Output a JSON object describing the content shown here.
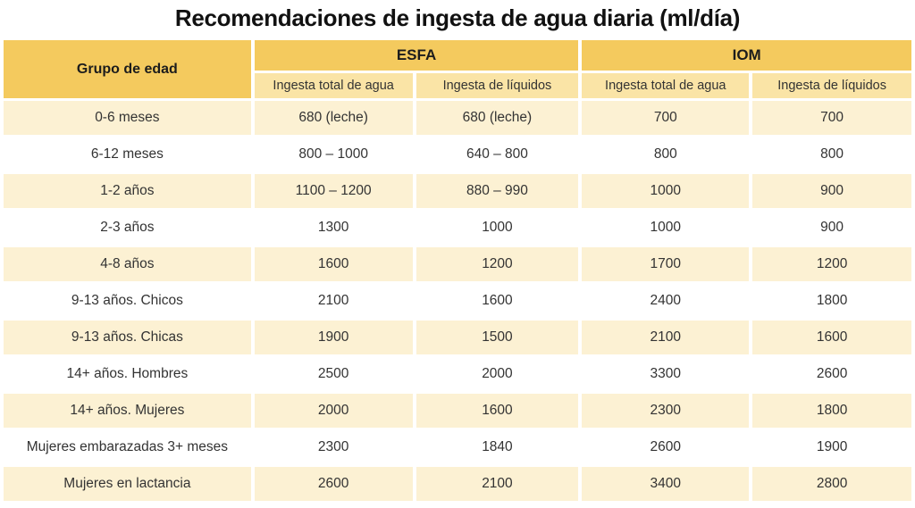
{
  "title": "Recomendaciones de ingesta de agua diaria (ml/día)",
  "colors": {
    "header_gold": "#F4CA5E",
    "subheader_gold": "#FAE4A6",
    "row_cream": "#FCF1D3",
    "row_white": "#FFFFFF",
    "text_dark": "#2B2B2B"
  },
  "chart_data": {
    "type": "table",
    "title": "Recomendaciones de ingesta de agua diaria (ml/día)",
    "group_header": "Grupo de edad",
    "org_groups": [
      {
        "label": "ESFA",
        "subcols": [
          "Ingesta total de agua",
          "Ingesta de líquidos"
        ]
      },
      {
        "label": "IOM",
        "subcols": [
          "Ingesta total de agua",
          "Ingesta de líquidos"
        ]
      }
    ],
    "rows": [
      {
        "group": "0-6 meses",
        "values": [
          "680 (leche)",
          "680 (leche)",
          "700",
          "700"
        ]
      },
      {
        "group": "6-12 meses",
        "values": [
          "800 – 1000",
          "640 – 800",
          "800",
          "800"
        ]
      },
      {
        "group": "1-2 años",
        "values": [
          "1100 – 1200",
          "880 – 990",
          "1000",
          "900"
        ]
      },
      {
        "group": "2-3 años",
        "values": [
          "1300",
          "1000",
          "1000",
          "900"
        ]
      },
      {
        "group": "4-8 años",
        "values": [
          "1600",
          "1200",
          "1700",
          "1200"
        ]
      },
      {
        "group": "9-13 años. Chicos",
        "values": [
          "2100",
          "1600",
          "2400",
          "1800"
        ]
      },
      {
        "group": "9-13 años. Chicas",
        "values": [
          "1900",
          "1500",
          "2100",
          "1600"
        ]
      },
      {
        "group": "14+ años. Hombres",
        "values": [
          "2500",
          "2000",
          "3300",
          "2600"
        ]
      },
      {
        "group": "14+ años. Mujeres",
        "values": [
          "2000",
          "1600",
          "2300",
          "1800"
        ]
      },
      {
        "group": "Mujeres embarazadas 3+ meses",
        "values": [
          "2300",
          "1840",
          "2600",
          "1900"
        ]
      },
      {
        "group": "Mujeres en lactancia",
        "values": [
          "2600",
          "2100",
          "3400",
          "2800"
        ]
      }
    ]
  }
}
